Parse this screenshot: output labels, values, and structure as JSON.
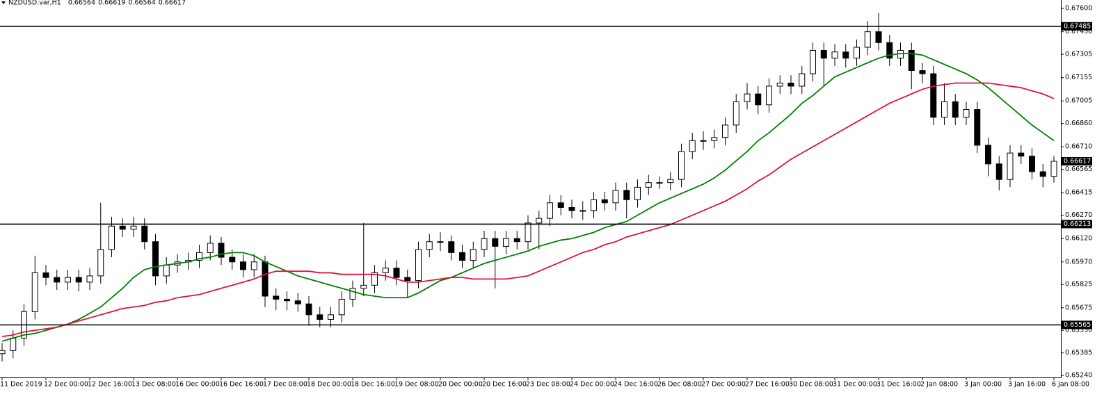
{
  "chart_data": {
    "type": "candlestick",
    "title": "NZDUSD.var,H1",
    "header_values": [
      0.66564,
      0.66619,
      0.66564,
      0.66617
    ],
    "categories": [
      "11 Dec 2019",
      null,
      null,
      null,
      "12 Dec 00:00",
      null,
      null,
      null,
      "12 Dec 16:00",
      null,
      null,
      null,
      "13 Dec 08:00",
      null,
      null,
      null,
      "16 Dec 00:00",
      null,
      null,
      null,
      "16 Dec 16:00",
      null,
      null,
      null,
      "17 Dec 08:00",
      null,
      null,
      null,
      "18 Dec 00:00",
      null,
      null,
      null,
      "18 Dec 16:00",
      null,
      null,
      null,
      "19 Dec 08:00",
      null,
      null,
      null,
      "20 Dec 00:00",
      null,
      null,
      null,
      "20 Dec 16:00",
      null,
      null,
      null,
      "23 Dec 08:00",
      null,
      null,
      null,
      "24 Dec 00:00",
      null,
      null,
      null,
      "24 Dec 16:00",
      null,
      null,
      null,
      "26 Dec 08:00",
      null,
      null,
      null,
      "27 Dec 00:00",
      null,
      null,
      null,
      "27 Dec 16:00",
      null,
      null,
      null,
      "30 Dec 08:00",
      null,
      null,
      null,
      "31 Dec 00:00",
      null,
      null,
      null,
      "31 Dec 16:00",
      null,
      null,
      null,
      "2 Jan 08:00",
      null,
      null,
      null,
      "3 Jan 00:00",
      null,
      null,
      null,
      "3 Jan 16:00",
      null,
      null,
      null,
      "6 Jan 08:00"
    ],
    "open": [
      0.6538,
      0.654,
      0.6548,
      0.6565,
      0.659,
      0.6587,
      0.6584,
      0.6587,
      0.6584,
      0.6588,
      0.6605,
      0.662,
      0.6618,
      0.662,
      0.661,
      0.6588,
      0.6595,
      0.6597,
      0.6598,
      0.6603,
      0.6609,
      0.66,
      0.6597,
      0.6592,
      0.6597,
      0.6575,
      0.6573,
      0.6572,
      0.657,
      0.6563,
      0.656,
      0.6563,
      0.6573,
      0.658,
      0.6582,
      0.659,
      0.6593,
      0.6587,
      0.6585,
      0.6605,
      0.661,
      0.661,
      0.6603,
      0.6598,
      0.6605,
      0.6612,
      0.6607,
      0.6612,
      0.661,
      0.6622,
      0.6625,
      0.6635,
      0.6632,
      0.663,
      0.663,
      0.6637,
      0.6635,
      0.6643,
      0.6637,
      0.6645,
      0.6648,
      0.6648,
      0.665,
      0.6668,
      0.6675,
      0.6675,
      0.6677,
      0.6685,
      0.67,
      0.6705,
      0.6698,
      0.671,
      0.6712,
      0.671,
      0.6718,
      0.6733,
      0.6728,
      0.6732,
      0.6728,
      0.6735,
      0.6745,
      0.6738,
      0.6728,
      0.6733,
      0.672,
      0.6718,
      0.669,
      0.67,
      0.669,
      0.6695,
      0.6672,
      0.666,
      0.665,
      0.6667,
      0.6665,
      0.6655,
      0.6652
    ],
    "high": [
      0.6545,
      0.6553,
      0.657,
      0.6601,
      0.6595,
      0.6592,
      0.6592,
      0.6592,
      0.6593,
      0.6635,
      0.6626,
      0.6625,
      0.6626,
      0.6625,
      0.6615,
      0.66,
      0.6602,
      0.6603,
      0.6608,
      0.6614,
      0.6613,
      0.6605,
      0.6602,
      0.6602,
      0.6601,
      0.658,
      0.6578,
      0.6577,
      0.6575,
      0.6568,
      0.6568,
      0.6578,
      0.6585,
      0.6622,
      0.6595,
      0.6598,
      0.6598,
      0.6592,
      0.661,
      0.6615,
      0.6616,
      0.6614,
      0.6608,
      0.661,
      0.6617,
      0.6617,
      0.6617,
      0.6617,
      0.6627,
      0.663,
      0.664,
      0.664,
      0.6637,
      0.6636,
      0.6642,
      0.6642,
      0.6648,
      0.6648,
      0.665,
      0.6653,
      0.6652,
      0.6655,
      0.6673,
      0.668,
      0.6681,
      0.6682,
      0.669,
      0.6705,
      0.6712,
      0.671,
      0.6715,
      0.6717,
      0.6717,
      0.6723,
      0.6738,
      0.6738,
      0.6737,
      0.6737,
      0.674,
      0.6752,
      0.6757,
      0.6743,
      0.6738,
      0.6738,
      0.6725,
      0.6723,
      0.6712,
      0.6705,
      0.67,
      0.67,
      0.6677,
      0.6665,
      0.6672,
      0.6672,
      0.667,
      0.666,
      0.6665
    ],
    "low": [
      0.6533,
      0.6535,
      0.6543,
      0.656,
      0.6582,
      0.6579,
      0.6579,
      0.6578,
      0.6579,
      0.6583,
      0.66,
      0.6613,
      0.6613,
      0.6605,
      0.6582,
      0.6583,
      0.659,
      0.6592,
      0.6593,
      0.6598,
      0.6595,
      0.6592,
      0.6587,
      0.6587,
      0.6568,
      0.6566,
      0.6566,
      0.6565,
      0.6556,
      0.6555,
      0.6555,
      0.6558,
      0.6568,
      0.6575,
      0.6577,
      0.6585,
      0.6582,
      0.6574,
      0.658,
      0.66,
      0.6604,
      0.6598,
      0.6593,
      0.6593,
      0.66,
      0.658,
      0.6602,
      0.6605,
      0.6605,
      0.6605,
      0.662,
      0.6627,
      0.6625,
      0.6624,
      0.6625,
      0.663,
      0.663,
      0.6625,
      0.6632,
      0.664,
      0.6644,
      0.6643,
      0.6645,
      0.6663,
      0.6669,
      0.667,
      0.6672,
      0.668,
      0.6695,
      0.6692,
      0.6693,
      0.6705,
      0.6705,
      0.6705,
      0.6713,
      0.671,
      0.6723,
      0.6722,
      0.6723,
      0.673,
      0.6733,
      0.6723,
      0.6723,
      0.6708,
      0.6712,
      0.6685,
      0.6685,
      0.6685,
      0.6685,
      0.6667,
      0.6652,
      0.6643,
      0.6645,
      0.666,
      0.665,
      0.6645,
      0.6648
    ],
    "close": [
      0.654,
      0.6548,
      0.6565,
      0.659,
      0.6587,
      0.6584,
      0.6587,
      0.6584,
      0.6588,
      0.6605,
      0.662,
      0.6618,
      0.662,
      0.661,
      0.6588,
      0.6595,
      0.6597,
      0.6598,
      0.6603,
      0.6609,
      0.66,
      0.6597,
      0.6592,
      0.6597,
      0.6575,
      0.6573,
      0.6572,
      0.657,
      0.6563,
      0.656,
      0.6563,
      0.6573,
      0.658,
      0.6582,
      0.659,
      0.6593,
      0.6587,
      0.6585,
      0.6605,
      0.661,
      0.661,
      0.6603,
      0.6598,
      0.6605,
      0.6612,
      0.6607,
      0.6612,
      0.661,
      0.6622,
      0.6625,
      0.6635,
      0.6632,
      0.663,
      0.663,
      0.6637,
      0.6635,
      0.6643,
      0.6637,
      0.6645,
      0.6648,
      0.6648,
      0.665,
      0.6668,
      0.6675,
      0.6675,
      0.6677,
      0.6685,
      0.67,
      0.6705,
      0.6698,
      0.671,
      0.6712,
      0.671,
      0.6718,
      0.6733,
      0.6728,
      0.6732,
      0.6728,
      0.6735,
      0.6745,
      0.6738,
      0.6728,
      0.6733,
      0.672,
      0.6718,
      0.669,
      0.67,
      0.669,
      0.6695,
      0.6672,
      0.666,
      0.665,
      0.6667,
      0.6665,
      0.6655,
      0.6652,
      0.66617
    ],
    "overlays": [
      {
        "color": "#008000",
        "values": [
          0.6546,
          0.6548,
          0.655,
          0.6551,
          0.6553,
          0.6555,
          0.6557,
          0.656,
          0.6564,
          0.6568,
          0.6574,
          0.658,
          0.6587,
          0.6592,
          0.6594,
          0.6595,
          0.6596,
          0.6597,
          0.6599,
          0.66,
          0.6602,
          0.6603,
          0.6603,
          0.6601,
          0.6597,
          0.6594,
          0.6591,
          0.6588,
          0.6586,
          0.6584,
          0.6582,
          0.658,
          0.6578,
          0.6576,
          0.6575,
          0.6574,
          0.6574,
          0.6574,
          0.6577,
          0.6581,
          0.6585,
          0.6587,
          0.659,
          0.6593,
          0.6596,
          0.6598,
          0.66,
          0.6602,
          0.6604,
          0.6607,
          0.6609,
          0.6611,
          0.6612,
          0.6614,
          0.6616,
          0.6619,
          0.6621,
          0.6623,
          0.6627,
          0.6631,
          0.6635,
          0.6638,
          0.6641,
          0.6644,
          0.6647,
          0.6651,
          0.6656,
          0.6662,
          0.6668,
          0.6675,
          0.668,
          0.6686,
          0.6692,
          0.6699,
          0.6704,
          0.671,
          0.6716,
          0.6719,
          0.6722,
          0.6725,
          0.6728,
          0.673,
          0.6731,
          0.6731,
          0.673,
          0.6727,
          0.6724,
          0.6721,
          0.6718,
          0.6714,
          0.6709,
          0.6703,
          0.6697,
          0.6691,
          0.6685,
          0.668,
          0.6675
        ]
      },
      {
        "color": "#dc143c",
        "values": [
          0.6549,
          0.655,
          0.6552,
          0.6553,
          0.6554,
          0.6555,
          0.6557,
          0.6559,
          0.6561,
          0.6563,
          0.6565,
          0.6567,
          0.6568,
          0.6569,
          0.6571,
          0.6572,
          0.6574,
          0.6575,
          0.6576,
          0.6578,
          0.658,
          0.6582,
          0.6584,
          0.6586,
          0.6589,
          0.6591,
          0.6591,
          0.6591,
          0.6591,
          0.659,
          0.659,
          0.6589,
          0.6589,
          0.6589,
          0.6589,
          0.6588,
          0.6586,
          0.6584,
          0.6584,
          0.6585,
          0.6586,
          0.6587,
          0.6587,
          0.6586,
          0.6586,
          0.6586,
          0.6586,
          0.6587,
          0.6588,
          0.6591,
          0.6594,
          0.6597,
          0.66,
          0.6603,
          0.6605,
          0.6608,
          0.661,
          0.6613,
          0.6615,
          0.6617,
          0.6619,
          0.6621,
          0.6624,
          0.6627,
          0.663,
          0.6633,
          0.6636,
          0.664,
          0.6644,
          0.6649,
          0.6653,
          0.6658,
          0.6663,
          0.6667,
          0.6671,
          0.6675,
          0.6679,
          0.6683,
          0.6687,
          0.6691,
          0.6695,
          0.6699,
          0.6702,
          0.6705,
          0.6708,
          0.671,
          0.6711,
          0.6712,
          0.6712,
          0.6712,
          0.6712,
          0.6711,
          0.671,
          0.6709,
          0.6707,
          0.6705,
          0.6702
        ]
      }
    ],
    "hlines": [
      0.67485,
      0.66213,
      0.65565
    ],
    "last_price": 0.66617,
    "ylim": [
      0.65227,
      0.67654
    ],
    "yticks": [
      {
        "value": 0.676,
        "label": "0.67600"
      },
      {
        "value": 0.6745,
        "label": "0.67450"
      },
      0.67305,
      0.67155,
      0.67005,
      {
        "value": 0.6686,
        "label": "0.66860"
      },
      {
        "value": 0.6671,
        "label": "0.66710"
      },
      0.66565,
      0.66415,
      {
        "value": 0.6627,
        "label": "0.66270"
      },
      {
        "value": 0.6612,
        "label": "0.66120"
      },
      {
        "value": 0.6597,
        "label": "0.65970"
      },
      0.65825,
      0.65675,
      {
        "value": 0.6553,
        "label": "0.65530"
      },
      0.65385,
      {
        "value": 0.6524,
        "label": "0.65240"
      }
    ],
    "bull_color": "#ffffff",
    "bear_color": "#000000"
  }
}
